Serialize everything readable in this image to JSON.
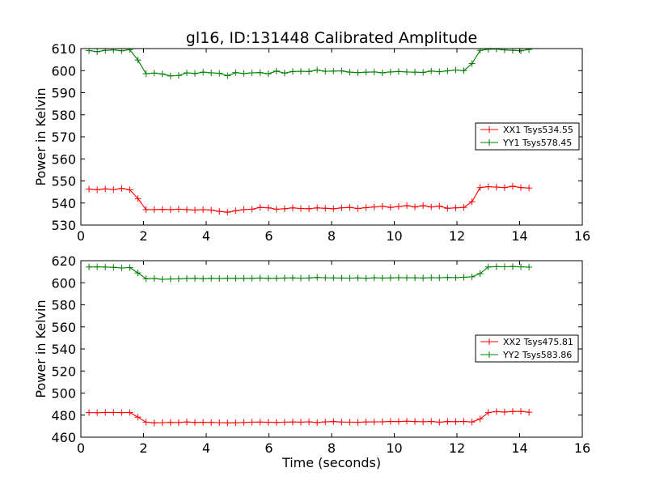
{
  "title": "gl16, ID:131448 Calibrated Amplitude",
  "colors": {
    "xx": "#ff0000",
    "yy": "#008000",
    "axes": "#000000"
  },
  "chart_data": [
    {
      "type": "line",
      "ylabel": "Power in Kelvin",
      "xlabel": "",
      "xlim": [
        0,
        16
      ],
      "ylim": [
        530,
        610
      ],
      "xticks": [
        0,
        2,
        4,
        6,
        8,
        10,
        12,
        14,
        16
      ],
      "yticks": [
        530,
        540,
        550,
        560,
        570,
        580,
        590,
        600,
        610
      ],
      "grid": false,
      "legend": "center-right",
      "marker": "plus",
      "x": [
        0.26,
        0.52,
        0.78,
        1.04,
        1.3,
        1.56,
        1.82,
        2.08,
        2.34,
        2.6,
        2.86,
        3.12,
        3.38,
        3.64,
        3.9,
        4.16,
        4.42,
        4.68,
        4.94,
        5.2,
        5.46,
        5.72,
        5.98,
        6.24,
        6.5,
        6.76,
        7.02,
        7.28,
        7.54,
        7.8,
        8.06,
        8.32,
        8.58,
        8.84,
        9.1,
        9.36,
        9.62,
        9.88,
        10.14,
        10.4,
        10.66,
        10.92,
        11.18,
        11.44,
        11.7,
        11.96,
        12.22,
        12.48,
        12.74,
        13.0,
        13.26,
        13.52,
        13.78,
        14.04,
        14.3
      ],
      "series": [
        {
          "name": "XX1 Tsys534.55",
          "color": "#ff0000",
          "values": [
            546.3,
            546.0,
            546.4,
            546.1,
            546.6,
            546.0,
            542.0,
            537.0,
            537.0,
            537.1,
            537.0,
            537.2,
            537.0,
            536.8,
            537.0,
            536.8,
            536.2,
            535.8,
            536.5,
            537.0,
            537.2,
            538.0,
            537.8,
            537.2,
            537.4,
            537.8,
            537.5,
            537.4,
            537.8,
            537.6,
            537.4,
            537.8,
            538.0,
            537.5,
            537.9,
            538.2,
            538.5,
            538.0,
            538.4,
            538.8,
            538.2,
            538.8,
            538.2,
            538.6,
            537.6,
            537.8,
            538.0,
            540.6,
            547.0,
            547.4,
            547.2,
            547.0,
            547.6,
            547.0,
            546.8
          ]
        },
        {
          "name": "YY1 Tsys578.45",
          "color": "#008000",
          "values": [
            609.1,
            608.6,
            609.2,
            609.4,
            609.0,
            609.5,
            604.8,
            598.6,
            598.9,
            598.5,
            597.6,
            597.8,
            599.0,
            598.7,
            599.3,
            599.0,
            598.8,
            597.7,
            599.1,
            598.7,
            599.0,
            599.1,
            598.6,
            599.8,
            598.9,
            599.6,
            599.7,
            599.6,
            600.3,
            599.7,
            599.8,
            599.9,
            599.3,
            599.1,
            599.3,
            599.4,
            599.0,
            599.4,
            599.6,
            599.4,
            599.3,
            599.2,
            599.8,
            599.5,
            599.9,
            600.3,
            600.0,
            603.2,
            609.2,
            609.7,
            609.8,
            609.4,
            609.2,
            609.0,
            609.6
          ]
        }
      ]
    },
    {
      "type": "line",
      "ylabel": "Power in Kelvin",
      "xlabel": "Time (seconds)",
      "xlim": [
        0,
        16
      ],
      "ylim": [
        460,
        620
      ],
      "xticks": [
        0,
        2,
        4,
        6,
        8,
        10,
        12,
        14,
        16
      ],
      "yticks": [
        460,
        480,
        500,
        520,
        540,
        560,
        580,
        600,
        620
      ],
      "grid": false,
      "legend": "center-right",
      "marker": "plus",
      "x": [
        0.26,
        0.52,
        0.78,
        1.04,
        1.3,
        1.56,
        1.82,
        2.08,
        2.34,
        2.6,
        2.86,
        3.12,
        3.38,
        3.64,
        3.9,
        4.16,
        4.42,
        4.68,
        4.94,
        5.2,
        5.46,
        5.72,
        5.98,
        6.24,
        6.5,
        6.76,
        7.02,
        7.28,
        7.54,
        7.8,
        8.06,
        8.32,
        8.58,
        8.84,
        9.1,
        9.36,
        9.62,
        9.88,
        10.14,
        10.4,
        10.66,
        10.92,
        11.18,
        11.44,
        11.7,
        11.96,
        12.22,
        12.48,
        12.74,
        13.0,
        13.26,
        13.52,
        13.78,
        14.04,
        14.3
      ],
      "series": [
        {
          "name": "XX2 Tsys475.81",
          "color": "#ff0000",
          "values": [
            482.3,
            482.2,
            482.4,
            482.4,
            482.3,
            482.4,
            478.2,
            473.6,
            473.0,
            473.2,
            473.4,
            473.3,
            473.8,
            473.4,
            473.5,
            473.4,
            473.2,
            473.0,
            473.1,
            473.3,
            473.6,
            473.7,
            473.5,
            473.4,
            473.6,
            473.8,
            473.6,
            473.9,
            473.3,
            473.9,
            474.2,
            473.7,
            473.6,
            473.5,
            473.8,
            473.9,
            474.0,
            474.3,
            474.2,
            474.5,
            474.2,
            474.0,
            474.3,
            473.6,
            474.2,
            474.1,
            474.3,
            473.8,
            476.5,
            482.3,
            483.2,
            482.8,
            483.3,
            483.4,
            482.6
          ]
        },
        {
          "name": "YY2 Tsys583.86",
          "color": "#008000",
          "values": [
            614.3,
            614.4,
            614.2,
            614.0,
            613.4,
            613.8,
            608.9,
            603.6,
            603.9,
            603.1,
            603.4,
            603.5,
            603.9,
            604.0,
            603.7,
            604.0,
            603.8,
            604.0,
            604.0,
            604.0,
            604.0,
            604.3,
            604.0,
            604.1,
            604.3,
            604.4,
            604.2,
            604.3,
            604.8,
            604.5,
            604.4,
            604.3,
            604.2,
            604.4,
            604.1,
            604.5,
            604.3,
            604.4,
            604.6,
            604.5,
            604.5,
            604.3,
            604.6,
            604.5,
            604.8,
            604.6,
            605.0,
            605.4,
            608.3,
            614.3,
            614.6,
            614.5,
            614.7,
            614.4,
            614.2
          ]
        }
      ]
    }
  ]
}
